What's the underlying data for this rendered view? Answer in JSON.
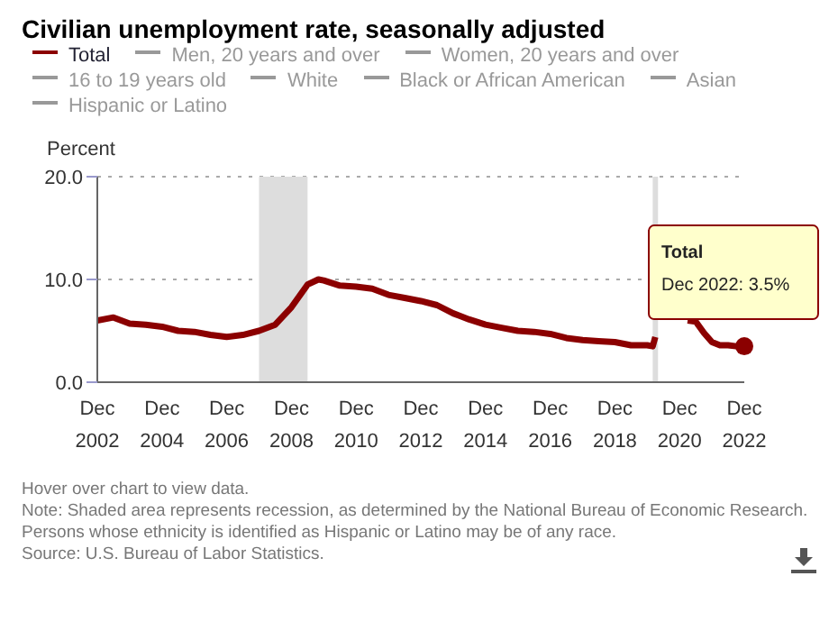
{
  "chart_data": {
    "type": "line",
    "title": "Civilian unemployment rate, seasonally adjusted",
    "ylabel": "Percent",
    "legend": "top",
    "grid": "y",
    "marker": "none",
    "line_style": "solid",
    "x": [
      "2002-12",
      "2003-06",
      "2003-12",
      "2004-06",
      "2004-12",
      "2005-06",
      "2005-12",
      "2006-06",
      "2006-12",
      "2007-06",
      "2007-12",
      "2008-06",
      "2008-12",
      "2009-06",
      "2009-10",
      "2009-12",
      "2010-06",
      "2010-12",
      "2011-06",
      "2011-12",
      "2012-06",
      "2012-12",
      "2013-06",
      "2013-12",
      "2014-06",
      "2014-12",
      "2015-06",
      "2015-12",
      "2016-06",
      "2016-12",
      "2017-06",
      "2017-12",
      "2018-06",
      "2018-12",
      "2019-06",
      "2019-12",
      "2020-02",
      "2020-03",
      "2020-04",
      "2020-06",
      "2020-09",
      "2020-12",
      "2021-03",
      "2021-06",
      "2021-09",
      "2021-12",
      "2022-03",
      "2022-06",
      "2022-09",
      "2022-12"
    ],
    "series": [
      {
        "name": "Total",
        "color": "#8b0000",
        "values": [
          6.0,
          6.3,
          5.7,
          5.6,
          5.4,
          5.0,
          4.9,
          4.6,
          4.4,
          4.6,
          5.0,
          5.6,
          7.3,
          9.5,
          10.0,
          9.9,
          9.4,
          9.3,
          9.1,
          8.5,
          8.2,
          7.9,
          7.5,
          6.7,
          6.1,
          5.6,
          5.3,
          5.0,
          4.9,
          4.7,
          4.3,
          4.1,
          4.0,
          3.9,
          3.6,
          3.6,
          3.5,
          4.4,
          null,
          null,
          null,
          null,
          6.0,
          5.9,
          4.8,
          3.9,
          3.6,
          3.6,
          3.5,
          3.5
        ]
      },
      {
        "name": "Men, 20 years and over",
        "color": "#999999",
        "values": [
          null,
          null,
          null,
          null,
          null,
          null,
          null,
          null,
          null,
          null,
          null,
          null,
          null,
          null,
          null,
          null,
          null,
          null,
          null,
          null,
          null,
          null,
          null,
          null,
          null,
          null,
          null,
          null,
          null,
          null,
          null,
          null,
          null,
          null,
          null,
          null,
          null,
          null,
          null,
          null,
          null,
          null,
          null,
          null,
          null,
          null,
          null,
          null,
          null,
          null
        ]
      },
      {
        "name": "Women, 20 years and over",
        "color": "#999999",
        "values": [
          null,
          null,
          null,
          null,
          null,
          null,
          null,
          null,
          null,
          null,
          null,
          null,
          null,
          null,
          null,
          null,
          null,
          null,
          null,
          null,
          null,
          null,
          null,
          null,
          null,
          null,
          null,
          null,
          null,
          null,
          null,
          null,
          null,
          null,
          null,
          null,
          null,
          null,
          null,
          null,
          null,
          null,
          null,
          null,
          null,
          null,
          null,
          null,
          null,
          null
        ]
      },
      {
        "name": "16 to 19 years old",
        "color": "#999999",
        "values": [
          null,
          null,
          null,
          null,
          null,
          null,
          null,
          null,
          null,
          null,
          null,
          null,
          null,
          null,
          null,
          null,
          null,
          null,
          null,
          null,
          null,
          null,
          null,
          null,
          null,
          null,
          null,
          null,
          null,
          null,
          null,
          null,
          null,
          null,
          null,
          null,
          null,
          null,
          null,
          null,
          null,
          null,
          null,
          null,
          null,
          null,
          null,
          null,
          null,
          null
        ]
      },
      {
        "name": "White",
        "color": "#999999",
        "values": [
          null,
          null,
          null,
          null,
          null,
          null,
          null,
          null,
          null,
          null,
          null,
          null,
          null,
          null,
          null,
          null,
          null,
          null,
          null,
          null,
          null,
          null,
          null,
          null,
          null,
          null,
          null,
          null,
          null,
          null,
          null,
          null,
          null,
          null,
          null,
          null,
          null,
          null,
          null,
          null,
          null,
          null,
          null,
          null,
          null,
          null,
          null,
          null,
          null,
          null
        ]
      },
      {
        "name": "Black or African American",
        "color": "#999999",
        "values": [
          null,
          null,
          null,
          null,
          null,
          null,
          null,
          null,
          null,
          null,
          null,
          null,
          null,
          null,
          null,
          null,
          null,
          null,
          null,
          null,
          null,
          null,
          null,
          null,
          null,
          null,
          null,
          null,
          null,
          null,
          null,
          null,
          null,
          null,
          null,
          null,
          null,
          null,
          null,
          null,
          null,
          null,
          null,
          null,
          null,
          null,
          null,
          null,
          null,
          null
        ]
      },
      {
        "name": "Asian",
        "color": "#999999",
        "values": [
          null,
          null,
          null,
          null,
          null,
          null,
          null,
          null,
          null,
          null,
          null,
          null,
          null,
          null,
          null,
          null,
          null,
          null,
          null,
          null,
          null,
          null,
          null,
          null,
          null,
          null,
          null,
          null,
          null,
          null,
          null,
          null,
          null,
          null,
          null,
          null,
          null,
          null,
          null,
          null,
          null,
          null,
          null,
          null,
          null,
          null,
          null,
          null,
          null,
          null
        ]
      },
      {
        "name": "Hispanic or Latino",
        "color": "#999999",
        "values": [
          null,
          null,
          null,
          null,
          null,
          null,
          null,
          null,
          null,
          null,
          null,
          null,
          null,
          null,
          null,
          null,
          null,
          null,
          null,
          null,
          null,
          null,
          null,
          null,
          null,
          null,
          null,
          null,
          null,
          null,
          null,
          null,
          null,
          null,
          null,
          null,
          null,
          null,
          null,
          null,
          null,
          null,
          null,
          null,
          null,
          null,
          null,
          null,
          null,
          null
        ]
      }
    ],
    "xlim": [
      "2002-12",
      "2022-12"
    ],
    "xticks": [
      {
        "value": "2002-12",
        "label": "Dec 2002"
      },
      {
        "value": "2004-12",
        "label": "Dec 2004"
      },
      {
        "value": "2006-12",
        "label": "Dec 2006"
      },
      {
        "value": "2008-12",
        "label": "Dec 2008"
      },
      {
        "value": "2010-12",
        "label": "Dec 2010"
      },
      {
        "value": "2012-12",
        "label": "Dec 2012"
      },
      {
        "value": "2014-12",
        "label": "Dec 2014"
      },
      {
        "value": "2016-12",
        "label": "Dec 2016"
      },
      {
        "value": "2018-12",
        "label": "Dec 2018"
      },
      {
        "value": "2020-12",
        "label": "Dec 2020"
      },
      {
        "value": "2022-12",
        "label": "Dec 2022"
      }
    ],
    "ylim": [
      0,
      20
    ],
    "yticks": [
      {
        "value": 0,
        "label": "0.0"
      },
      {
        "value": 10,
        "label": "10.0"
      },
      {
        "value": 20,
        "label": "20.0"
      }
    ],
    "bands": [
      {
        "axis": "x",
        "from": "2007-12",
        "to": "2009-06",
        "color": "#dddddd"
      },
      {
        "axis": "x",
        "from": "2020-02",
        "to": "2020-04",
        "color": "#dddddd"
      }
    ],
    "annotations": [
      {
        "text": "Total\nDec 2022: 3.5%",
        "x": "2022-12",
        "y": 3.5
      },
      "Hover over chart to view data.",
      "Note: Shaded area represents recession, as determined by the National Bureau of Economic Research.",
      "Persons whose ethnicity is identified as Hispanic or Latino may be of any race.",
      "Source: U.S. Bureau of Labor Statistics."
    ]
  }
}
